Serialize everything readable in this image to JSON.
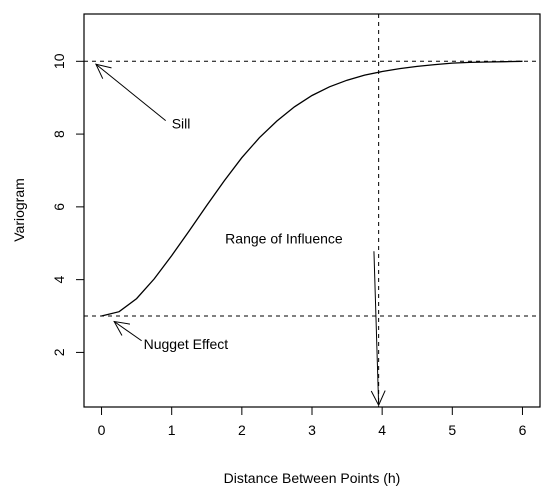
{
  "chart_data": {
    "type": "line",
    "xlabel": "Distance Between Points (h)",
    "ylabel": "Variogram",
    "xlim": [
      -0.25,
      6.25
    ],
    "ylim": [
      0.5,
      11.3
    ],
    "xticks": [
      "0",
      "1",
      "2",
      "3",
      "4",
      "5",
      "6"
    ],
    "yticks": [
      "2",
      "4",
      "6",
      "8",
      "10"
    ],
    "grid": false,
    "series": [
      {
        "x": [
          0,
          0.25,
          0.5,
          0.75,
          1.0,
          1.25,
          1.5,
          1.75,
          2.0,
          2.25,
          2.5,
          2.75,
          3.0,
          3.25,
          3.5,
          3.75,
          4.0,
          4.25,
          4.5,
          4.75,
          5.0,
          5.25,
          5.5,
          5.75,
          6.0
        ],
        "y": [
          3.0,
          3.12,
          3.48,
          4.02,
          4.66,
          5.34,
          6.04,
          6.72,
          7.35,
          7.9,
          8.36,
          8.75,
          9.06,
          9.3,
          9.48,
          9.62,
          9.72,
          9.8,
          9.86,
          9.91,
          9.95,
          9.97,
          9.98,
          9.99,
          10.0
        ]
      }
    ],
    "reference_lines": {
      "sill": 10,
      "nugget": 3,
      "range": 3.95
    },
    "annotations": [
      {
        "text": "Sill",
        "x": 1.0,
        "y": 8.15,
        "target_x": -0.08,
        "target_y": 9.92
      },
      {
        "text": "Nugget Effect",
        "x": 0.6,
        "y": 2.1,
        "target_x": 0.18,
        "target_y": 2.85
      },
      {
        "text": "Range of Influence",
        "x": 2.6,
        "y": 5.0,
        "target_x": 3.95,
        "target_y": 0.55
      }
    ]
  }
}
